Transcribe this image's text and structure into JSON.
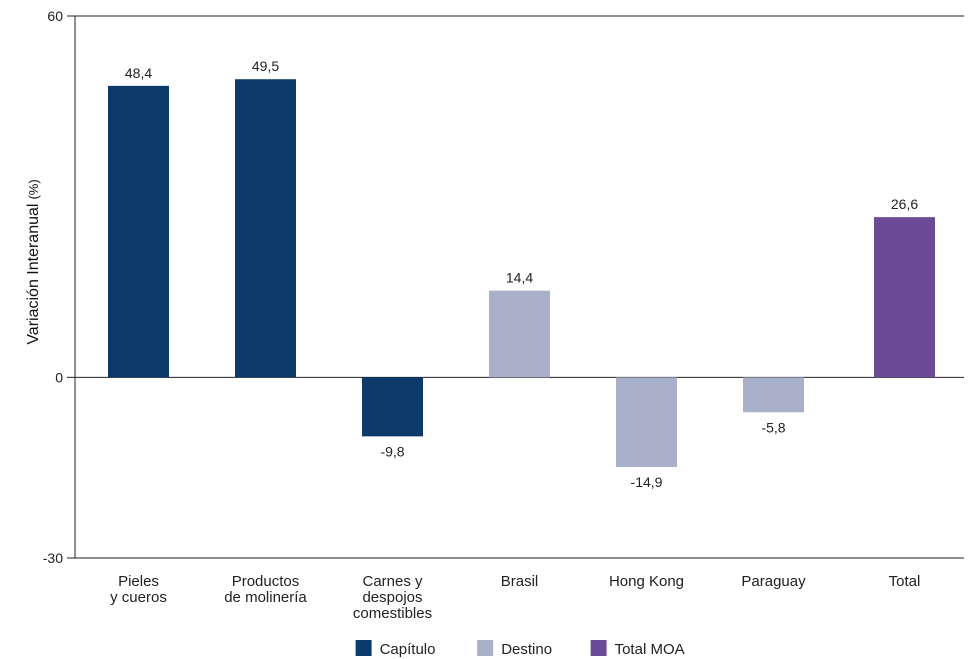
{
  "chart_data": {
    "type": "bar",
    "ylabel": "Variación Interanual",
    "ylabel_unit": "(%)",
    "ylim": [
      -30,
      60
    ],
    "yticks": [
      "60",
      "0",
      "-30"
    ],
    "grid": false,
    "legend_placement": "bottom",
    "categories": [
      [
        "Pieles",
        "y cueros"
      ],
      [
        "Productos",
        "de molinería"
      ],
      [
        "Carnes y",
        "despojos",
        "comestibles"
      ],
      [
        "Brasil"
      ],
      [
        "Hong Kong"
      ],
      [
        "Paraguay"
      ],
      [
        "Total"
      ]
    ],
    "values": [
      48.4,
      49.5,
      -9.8,
      14.4,
      -14.9,
      -5.8,
      26.6
    ],
    "value_labels": [
      "48,4",
      "49,5",
      "-9,8",
      "14,4",
      "-14,9",
      "-5,8",
      "26,6"
    ],
    "groups": [
      "capitulo",
      "capitulo",
      "capitulo",
      "destino",
      "destino",
      "destino",
      "total"
    ],
    "legend": [
      {
        "key": "capitulo",
        "label": "Capítulo",
        "color": "#0b3a6b"
      },
      {
        "key": "destino",
        "label": "Destino",
        "color": "#a9b0c9"
      },
      {
        "key": "total",
        "label": "Total MOA",
        "color": "#6b4a98"
      }
    ]
  }
}
